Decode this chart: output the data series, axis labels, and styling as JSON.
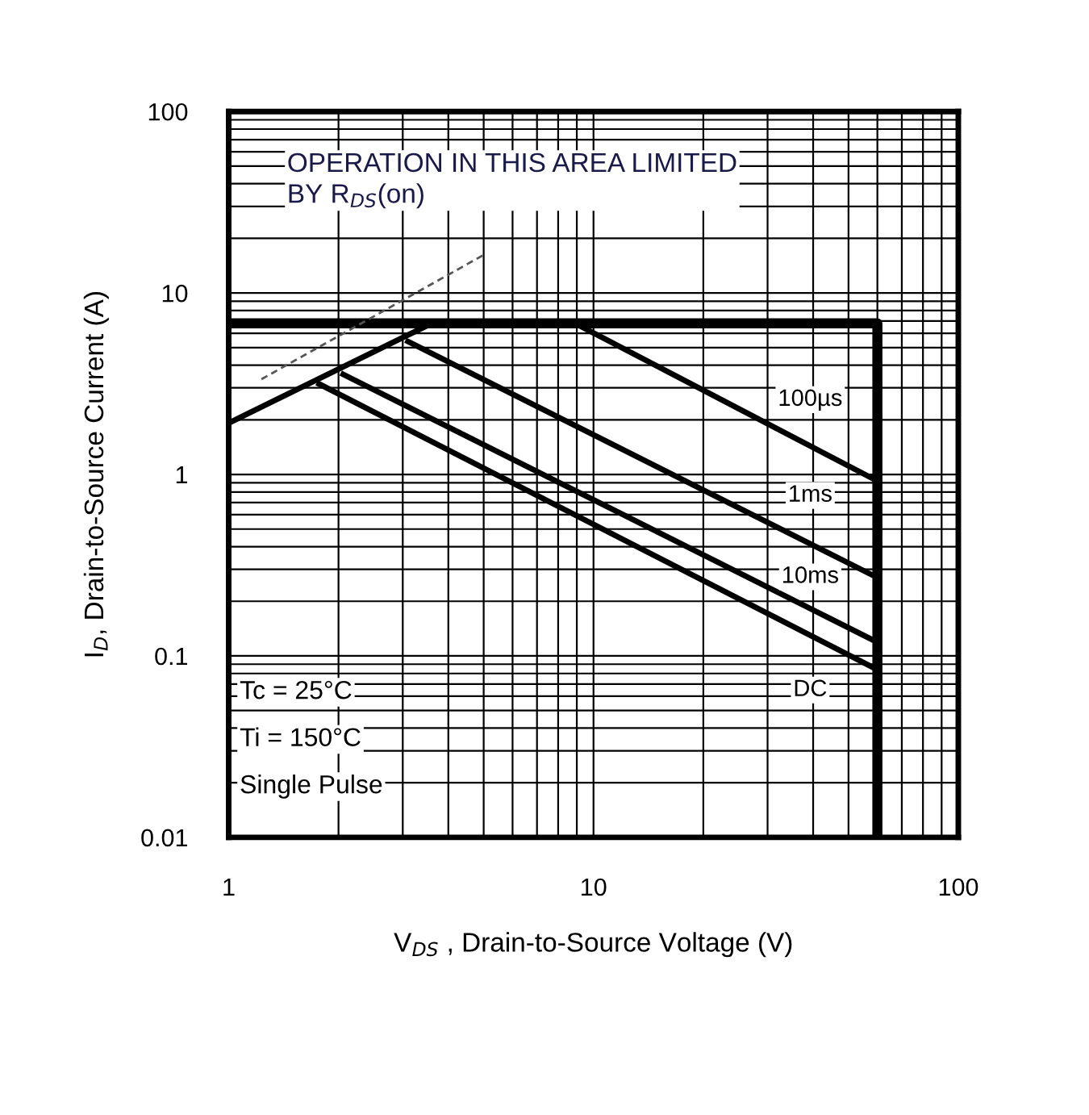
{
  "chart_data": {
    "type": "line",
    "log": "xy",
    "grid": true,
    "marker": "none",
    "xlabel": "V$_{DS}$ , Drain-to-Source Voltage (V)",
    "ylabel": "I$_{D}$, Drain-to-Source Current (A)",
    "xlim": [
      1,
      100
    ],
    "xticks": [
      1,
      10,
      100
    ],
    "ylim": [
      0.01,
      100
    ],
    "yticks": [
      0.01,
      0.1,
      1,
      10,
      100
    ],
    "series": [
      {
        "color": "#000000",
        "x": [
          1,
          60,
          60
        ],
        "values": [
          6.8,
          6.8,
          0.01
        ]
      },
      {
        "color": "#000000",
        "x": [
          1,
          3.6
        ],
        "values": [
          1.92,
          6.8
        ]
      },
      {
        "color": "#000000",
        "x": [
          8.9,
          60
        ],
        "values": [
          6.8,
          0.92
        ]
      },
      {
        "color": "#000000",
        "x": [
          3.1,
          60
        ],
        "values": [
          5.4,
          0.27
        ]
      },
      {
        "color": "#000000",
        "x": [
          2.06,
          60
        ],
        "values": [
          3.56,
          0.119
        ]
      },
      {
        "color": "#000000",
        "x": [
          1.77,
          60
        ],
        "values": [
          3.15,
          0.084
        ]
      },
      {
        "color": "#555555",
        "line_style": "dashed",
        "x": [
          1.23,
          5.0
        ],
        "values": [
          3.35,
          16.2
        ]
      }
    ],
    "annotations": [
      "OPERATION IN THIS AREA LIMITED\nBY R$_{DS}$(on)",
      "Tc = 25°C",
      "Ti = 150°C",
      "Single Pulse",
      "100µs",
      "1ms",
      "10ms",
      "DC"
    ]
  }
}
